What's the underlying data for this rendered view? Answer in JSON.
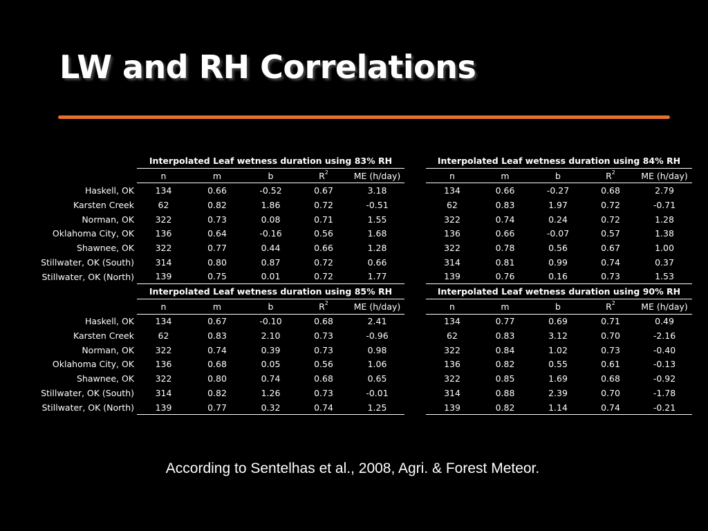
{
  "title": "LW and RH Correlations",
  "accent_color": "#e9712a",
  "citation": "According to Sentelhas et al., 2008, Agri. & Forest Meteor.",
  "columns": {
    "n": "n",
    "m": "m",
    "b": "b",
    "r2_base": "R",
    "r2_sup": "2",
    "me": "ME (h/day)"
  },
  "blocks": [
    {
      "left": {
        "title": "Interpolated Leaf wetness duration using 83% RH",
        "rows": [
          [
            "134",
            "0.66",
            "-0.52",
            "0.67",
            "3.18"
          ],
          [
            "62",
            "0.82",
            "1.86",
            "0.72",
            "-0.51"
          ],
          [
            "322",
            "0.73",
            "0.08",
            "0.71",
            "1.55"
          ],
          [
            "136",
            "0.64",
            "-0.16",
            "0.56",
            "1.68"
          ],
          [
            "322",
            "0.77",
            "0.44",
            "0.66",
            "1.28"
          ],
          [
            "314",
            "0.80",
            "0.87",
            "0.72",
            "0.66"
          ],
          [
            "139",
            "0.75",
            "0.01",
            "0.72",
            "1.77"
          ]
        ]
      },
      "right": {
        "title": "Interpolated Leaf wetness duration using 84% RH",
        "rows": [
          [
            "134",
            "0.66",
            "-0.27",
            "0.68",
            "2.79"
          ],
          [
            "62",
            "0.83",
            "1.97",
            "0.72",
            "-0.71"
          ],
          [
            "322",
            "0.74",
            "0.24",
            "0.72",
            "1.28"
          ],
          [
            "136",
            "0.66",
            "-0.07",
            "0.57",
            "1.38"
          ],
          [
            "322",
            "0.78",
            "0.56",
            "0.67",
            "1.00"
          ],
          [
            "314",
            "0.81",
            "0.99",
            "0.74",
            "0.37"
          ],
          [
            "139",
            "0.76",
            "0.16",
            "0.73",
            "1.53"
          ]
        ]
      }
    },
    {
      "left": {
        "title": "Interpolated Leaf wetness duration using 85% RH",
        "rows": [
          [
            "134",
            "0.67",
            "-0.10",
            "0.68",
            "2.41"
          ],
          [
            "62",
            "0.83",
            "2.10",
            "0.73",
            "-0.96"
          ],
          [
            "322",
            "0.74",
            "0.39",
            "0.73",
            "0.98"
          ],
          [
            "136",
            "0.68",
            "0.05",
            "0.56",
            "1.06"
          ],
          [
            "322",
            "0.80",
            "0.74",
            "0.68",
            "0.65"
          ],
          [
            "314",
            "0.82",
            "1.26",
            "0.73",
            "-0.01"
          ],
          [
            "139",
            "0.77",
            "0.32",
            "0.74",
            "1.25"
          ]
        ]
      },
      "right": {
        "title": "Interpolated Leaf wetness duration using 90% RH",
        "rows": [
          [
            "134",
            "0.77",
            "0.69",
            "0.71",
            "0.49"
          ],
          [
            "62",
            "0.83",
            "3.12",
            "0.70",
            "-2.16"
          ],
          [
            "322",
            "0.84",
            "1.02",
            "0.73",
            "-0.40"
          ],
          [
            "136",
            "0.82",
            "0.55",
            "0.61",
            "-0.13"
          ],
          [
            "322",
            "0.85",
            "1.69",
            "0.68",
            "-0.92"
          ],
          [
            "314",
            "0.88",
            "2.39",
            "0.70",
            "-1.78"
          ],
          [
            "139",
            "0.82",
            "1.14",
            "0.74",
            "-0.21"
          ]
        ]
      }
    }
  ],
  "sites": [
    "Haskell, OK",
    "Karsten Creek",
    "Norman, OK",
    "Oklahoma City, OK",
    "Shawnee, OK",
    "Stillwater, OK (South)",
    "Stillwater, OK (North)"
  ]
}
